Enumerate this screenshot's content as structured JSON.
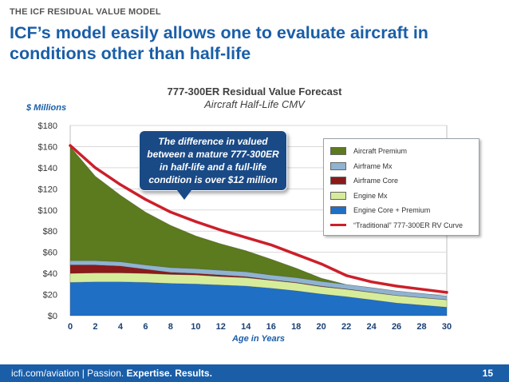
{
  "eyebrow": "THE ICF RESIDUAL VALUE MODEL",
  "headline": "ICF’s model easily allows one to evaluate aircraft in conditions other than half-life",
  "footer": {
    "site": "icfi.com/aviation",
    "separator": " | ",
    "passion": "Passion. ",
    "expertise": "Expertise. ",
    "results": "Results.",
    "page_number": "15"
  },
  "callout": "The difference in valued between a mature 777-300ER in half-life and a full-life condition is over $12 million",
  "colors": {
    "engine_core_premium": "#1f6fc5",
    "engine_mx": "#d7ec9a",
    "airframe_core": "#8b1a1a",
    "airframe_mx": "#8fb3d1",
    "aircraft_premium": "#5c7a1e",
    "rv_curve": "#cc1f2a",
    "brand": "#1a5ea8"
  },
  "chart_data": {
    "type": "area",
    "title": "777-300ER Residual Value Forecast",
    "subtitle": "Aircraft Half-Life CMV",
    "ylabel": "$ Millions",
    "xlabel": "Age in Years",
    "x_ticks": [
      "0",
      "2",
      "4",
      "6",
      "8",
      "10",
      "12",
      "14",
      "16",
      "18",
      "20",
      "22",
      "24",
      "26",
      "28",
      "30"
    ],
    "y_ticks": [
      "$0",
      "$20",
      "$40",
      "$60",
      "$80",
      "$100",
      "$120",
      "$140",
      "$160",
      "$180"
    ],
    "xlim": [
      0,
      30
    ],
    "ylim": [
      0,
      180
    ],
    "grid": true,
    "legend_position": "right",
    "x": [
      0,
      2,
      4,
      6,
      8,
      10,
      12,
      14,
      16,
      18,
      20,
      22,
      24,
      26,
      28,
      30
    ],
    "stacked_series": [
      {
        "name": "Engine Core + Premium",
        "color_key": "engine_core_premium",
        "values": [
          31.5,
          32,
          32,
          31.5,
          30.5,
          30,
          29,
          28,
          26,
          23.5,
          20.5,
          18,
          15,
          12,
          10,
          8
        ]
      },
      {
        "name": "Engine Mx",
        "color_key": "engine_mx",
        "values": [
          8.5,
          8.5,
          8.5,
          8.5,
          8.5,
          8.5,
          8,
          8,
          7.5,
          7.5,
          7,
          7,
          7,
          7,
          7,
          7
        ]
      },
      {
        "name": "Airframe Core",
        "color_key": "airframe_core",
        "values": [
          8,
          7.5,
          6.5,
          4,
          2,
          1.5,
          1.5,
          1,
          0.5,
          0.5,
          0.5,
          0.3,
          0.3,
          0.2,
          0.2,
          0.2
        ]
      },
      {
        "name": "Airframe Mx",
        "color_key": "airframe_mx",
        "values": [
          4,
          4,
          4,
          4,
          4.5,
          4.5,
          4.5,
          4.5,
          4.5,
          4.5,
          4.5,
          4.2,
          4.2,
          4.1,
          3.8,
          3.3
        ]
      },
      {
        "name": "Aircraft Premium",
        "color_key": "aircraft_premium",
        "values": [
          108,
          80,
          63,
          50,
          40,
          31,
          25,
          20,
          15,
          9,
          3,
          0,
          0,
          0,
          0,
          0
        ]
      }
    ],
    "line_series": {
      "name": "“Traditional” 777-300ER RV Curve",
      "color_key": "rv_curve",
      "values": [
        161,
        140,
        124,
        110,
        98,
        89,
        81,
        74,
        67,
        58,
        49,
        38,
        32,
        28,
        25,
        22
      ]
    },
    "legend_order": [
      "Aircraft Premium",
      "Airframe Mx",
      "Airframe Core",
      "Engine Mx",
      "Engine Core + Premium",
      "“Traditional” 777-300ER RV Curve"
    ]
  }
}
